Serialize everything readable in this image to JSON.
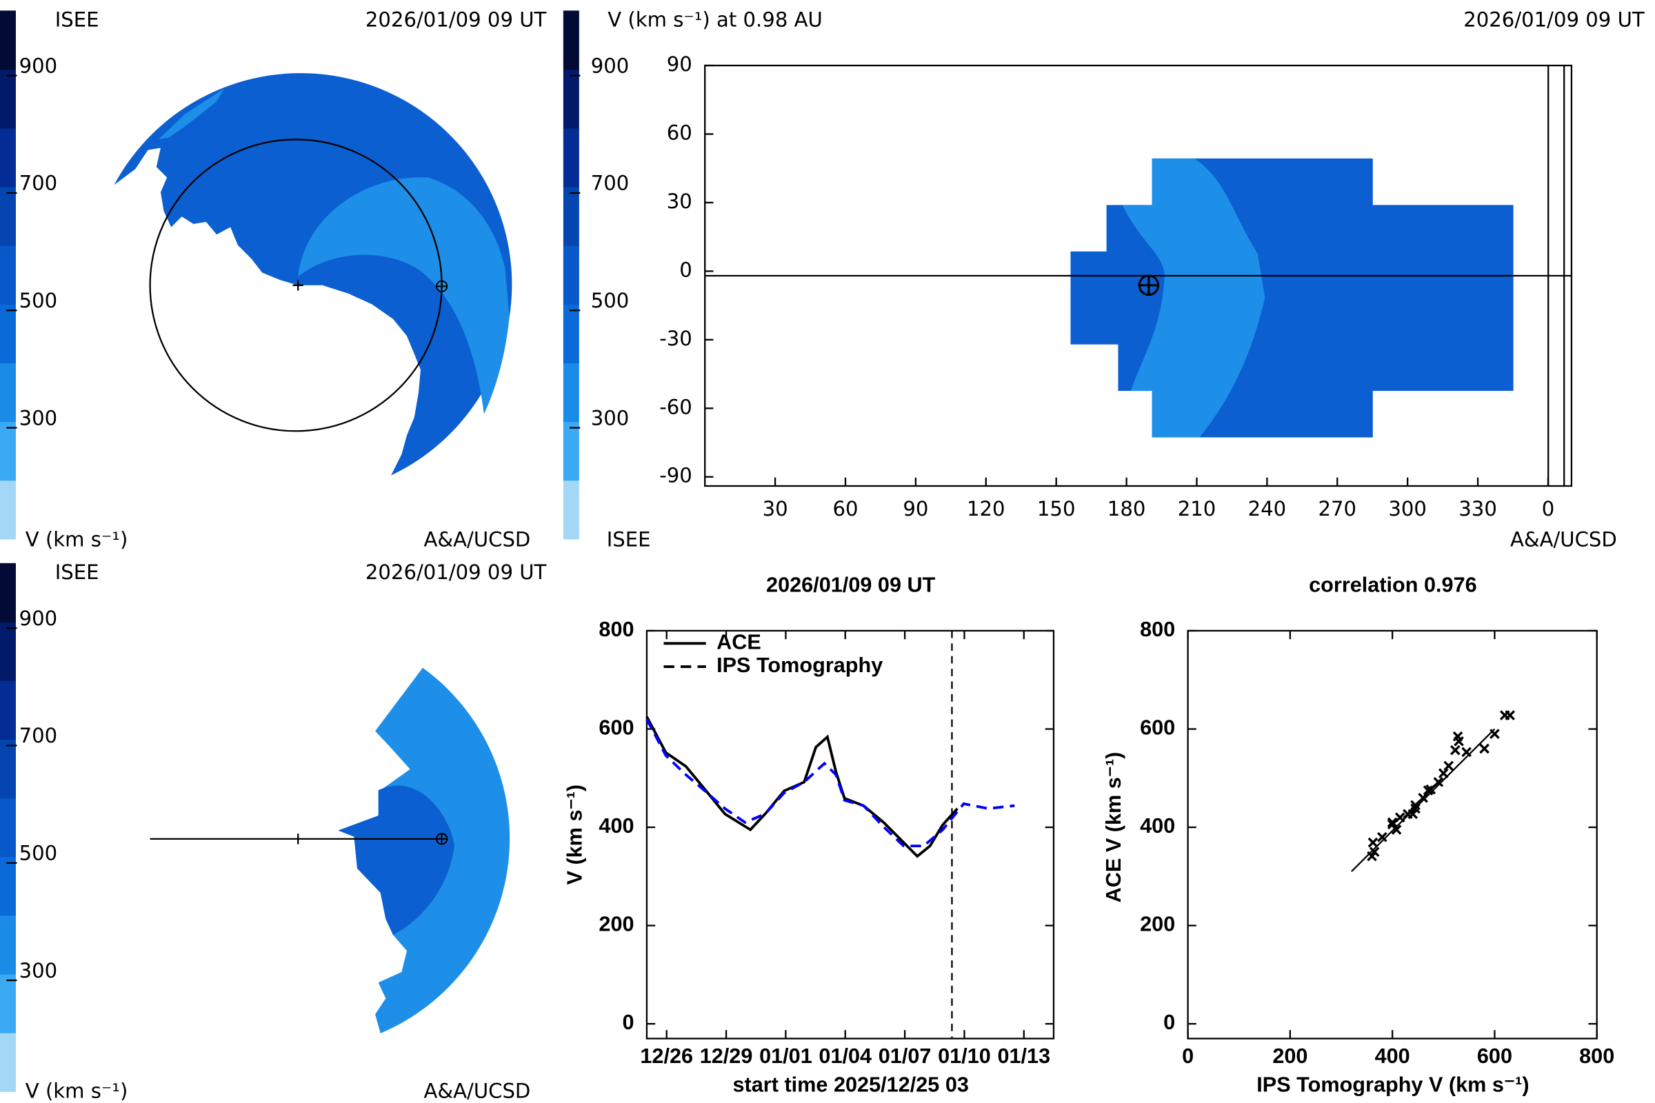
{
  "chart_data": [
    {
      "type": "polar-map",
      "label": "ISEE",
      "date": "2026/01/09 09 UT",
      "credit": "A&A/UCSD",
      "colorbar": {
        "label": "V (km s⁻¹)",
        "zlim": [
          100,
          1000
        ],
        "zticks": [
          300,
          500,
          700,
          900
        ],
        "colors": [
          "#a3d7f6",
          "#3aaaf4",
          "#1a8ce8",
          "#0a6ad8",
          "#0758c8",
          "#0545b0",
          "#032c94",
          "#021a6a",
          "#020b35"
        ]
      }
    },
    {
      "type": "latlon-map",
      "title": "V (km s⁻¹) at 0.98 AU",
      "date": "2026/01/09 09 UT",
      "label": "ISEE",
      "credit": "A&A/UCSD",
      "colorbar": {
        "zlim": [
          100,
          1000
        ],
        "zticks": [
          300,
          500,
          700,
          900
        ],
        "colors": [
          "#a3d7f6",
          "#3aaaf4",
          "#1a8ce8",
          "#0a6ad8",
          "#0758c8",
          "#0545b0",
          "#032c94",
          "#021a6a",
          "#020b35"
        ]
      },
      "xlim": [
        0,
        370
      ],
      "xticks": [
        30,
        60,
        90,
        120,
        150,
        180,
        210,
        240,
        270,
        300,
        330,
        {
          "value": 360,
          "label": "0"
        }
      ],
      "ylim": [
        -94,
        90
      ],
      "yticks": [
        90,
        60,
        30,
        0,
        -30,
        -60,
        -90
      ]
    },
    {
      "type": "meridional-map",
      "label": "ISEE",
      "date": "2026/01/09 09 UT",
      "credit": "A&A/UCSD",
      "colorbar": {
        "label": "V (km s⁻¹)",
        "zlim": [
          100,
          1000
        ],
        "zticks": [
          300,
          500,
          700,
          900
        ],
        "colors": [
          "#a3d7f6",
          "#3aaaf4",
          "#1a8ce8",
          "#0a6ad8",
          "#0758c8",
          "#0545b0",
          "#032c94",
          "#021a6a",
          "#020b35"
        ]
      }
    },
    {
      "type": "line",
      "title": "2026/01/09 09 UT",
      "xlabel": "start time 2025/12/25 03",
      "ylabel": "V (km s⁻¹)",
      "xlim": [
        0,
        20.5
      ],
      "xticks": [
        {
          "value": 1,
          "label": "12/26"
        },
        {
          "value": 4,
          "label": "12/29"
        },
        {
          "value": 7,
          "label": "01/01"
        },
        {
          "value": 10,
          "label": "01/04"
        },
        {
          "value": 13,
          "label": "01/07"
        },
        {
          "value": 16,
          "label": "01/10"
        },
        {
          "value": 19,
          "label": "01/13"
        }
      ],
      "ylim": [
        -30,
        800
      ],
      "yticks": [
        0,
        200,
        400,
        600,
        800
      ],
      "vline": 15.375,
      "legend": "upper left",
      "series": [
        {
          "name": "ACE",
          "color": "#000000",
          "dash": false,
          "x": [
            0,
            0.96,
            1.97,
            2.93,
            3.94,
            5.22,
            5.96,
            6.92,
            7.93,
            8.52,
            9.1,
            9.53,
            9.96,
            10.92,
            11.93,
            12.94,
            13.63,
            14.27,
            14.91,
            15.65
          ],
          "values": [
            625,
            552,
            524,
            477,
            427,
            395,
            427,
            474,
            492,
            563,
            584,
            513,
            459,
            444,
            410,
            369,
            341,
            362,
            405,
            438
          ]
        },
        {
          "name": "IPS Tomography",
          "color": "#0000ff",
          "dash": true,
          "x": [
            0,
            0.96,
            1.97,
            2.93,
            3.94,
            4.95,
            5.96,
            6.92,
            7.93,
            8.95,
            9.53,
            9.96,
            10.92,
            11.93,
            12.94,
            13.95,
            14.91,
            15.97,
            17.2,
            18.53
          ],
          "values": [
            620,
            546,
            507,
            474,
            438,
            410,
            427,
            470,
            492,
            530,
            507,
            455,
            444,
            401,
            362,
            362,
            395,
            448,
            438,
            444
          ]
        }
      ]
    },
    {
      "type": "scatter",
      "title": "correlation 0.976",
      "xlabel": "IPS Tomography V (km s⁻¹)",
      "ylabel": "ACE V (km s⁻¹)",
      "xlim": [
        0,
        800
      ],
      "xticks": [
        0,
        200,
        400,
        600,
        800
      ],
      "ylim": [
        -30,
        800
      ],
      "yticks": [
        0,
        200,
        400,
        600,
        800
      ],
      "color": "#000000",
      "x": [
        620,
        545,
        510,
        475,
        440,
        408,
        430,
        470,
        490,
        528,
        523,
        460,
        445,
        400,
        362,
        360,
        400,
        445,
        365,
        380,
        415,
        500,
        530,
        580,
        600,
        630
      ],
      "values": [
        628,
        553,
        525,
        477,
        427,
        395,
        427,
        475,
        492,
        585,
        557,
        460,
        445,
        410,
        369,
        341,
        406,
        438,
        350,
        380,
        420,
        510,
        575,
        560,
        590,
        628
      ],
      "fit": {
        "x": [
          320,
          600
        ],
        "y": [
          310,
          600
        ]
      }
    }
  ]
}
